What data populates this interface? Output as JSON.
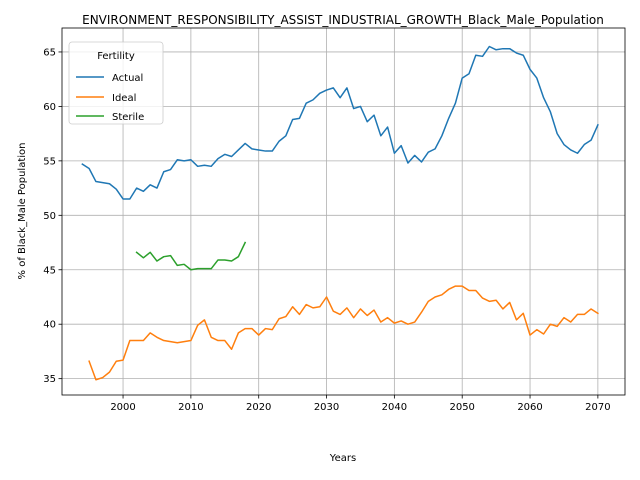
{
  "chart_data": {
    "type": "line",
    "title": "ENVIRONMENT_RESPONSIBILITY_ASSIST_INDUSTRIAL_GROWTH_Black_Male_Population",
    "xlabel": "Years",
    "ylabel": "% of Black_Male Population",
    "xlim": [
      1991,
      2074
    ],
    "ylim": [
      33.5,
      67.2
    ],
    "xticks": [
      2000,
      2010,
      2020,
      2030,
      2040,
      2050,
      2060,
      2070
    ],
    "yticks": [
      35,
      40,
      45,
      50,
      55,
      60,
      65
    ],
    "grid": true,
    "legend": {
      "title": "Fertility",
      "placement": "top-left"
    },
    "series": [
      {
        "name": "Actual",
        "color": "#1f77b4",
        "x": [
          1994,
          1995,
          1996,
          1997,
          1998,
          1999,
          2000,
          2001,
          2002,
          2003,
          2004,
          2005,
          2006,
          2007,
          2008,
          2009,
          2010,
          2011,
          2012,
          2013,
          2014,
          2015,
          2016,
          2017,
          2018,
          2019,
          2020,
          2021,
          2022,
          2023,
          2024,
          2025,
          2026,
          2027,
          2028,
          2029,
          2030,
          2031,
          2032,
          2033,
          2034,
          2035,
          2036,
          2037,
          2038,
          2039,
          2040,
          2041,
          2042,
          2043,
          2044,
          2045,
          2046,
          2047,
          2048,
          2049,
          2050,
          2051,
          2052,
          2053,
          2054,
          2055,
          2056,
          2057,
          2058,
          2059,
          2060,
          2061,
          2062,
          2063,
          2064,
          2065,
          2066,
          2067,
          2068,
          2069,
          2070
        ],
        "values": [
          54.7,
          54.3,
          53.1,
          53.0,
          52.9,
          52.4,
          51.5,
          51.5,
          52.5,
          52.2,
          52.8,
          52.5,
          54.0,
          54.2,
          55.1,
          55.0,
          55.1,
          54.5,
          54.6,
          54.5,
          55.2,
          55.6,
          55.4,
          56.0,
          56.6,
          56.1,
          56.0,
          55.9,
          55.9,
          56.8,
          57.3,
          58.8,
          58.9,
          60.3,
          60.6,
          61.2,
          61.5,
          61.7,
          60.8,
          61.7,
          59.8,
          60.0,
          58.6,
          59.2,
          57.3,
          58.1,
          55.7,
          56.4,
          54.8,
          55.5,
          54.9,
          55.8,
          56.1,
          57.3,
          58.9,
          60.3,
          62.6,
          63.0,
          64.7,
          64.6,
          65.5,
          65.2,
          65.3,
          65.3,
          64.9,
          64.7,
          63.4,
          62.6,
          60.8,
          59.5,
          57.5,
          56.5,
          56.0,
          55.7,
          56.5,
          56.9,
          58.3
        ]
      },
      {
        "name": "Ideal",
        "color": "#ff7f0e",
        "x": [
          1995,
          1996,
          1997,
          1998,
          1999,
          2000,
          2001,
          2002,
          2003,
          2004,
          2005,
          2006,
          2007,
          2008,
          2009,
          2010,
          2011,
          2012,
          2013,
          2014,
          2015,
          2016,
          2017,
          2018,
          2019,
          2020,
          2021,
          2022,
          2023,
          2024,
          2025,
          2026,
          2027,
          2028,
          2029,
          2030,
          2031,
          2032,
          2033,
          2034,
          2035,
          2036,
          2037,
          2038,
          2039,
          2040,
          2041,
          2042,
          2043,
          2044,
          2045,
          2046,
          2047,
          2048,
          2049,
          2050,
          2051,
          2052,
          2053,
          2054,
          2055,
          2056,
          2057,
          2058,
          2059,
          2060,
          2061,
          2062,
          2063,
          2064,
          2065,
          2066,
          2067,
          2068,
          2069,
          2070
        ],
        "values": [
          36.6,
          34.9,
          35.1,
          35.6,
          36.6,
          36.7,
          38.5,
          38.5,
          38.5,
          39.2,
          38.8,
          38.5,
          38.4,
          38.3,
          38.4,
          38.5,
          39.9,
          40.4,
          38.8,
          38.5,
          38.5,
          37.7,
          39.2,
          39.6,
          39.6,
          39.0,
          39.6,
          39.5,
          40.5,
          40.7,
          41.6,
          40.9,
          41.8,
          41.5,
          41.6,
          42.5,
          41.2,
          40.9,
          41.5,
          40.6,
          41.4,
          40.8,
          41.3,
          40.2,
          40.6,
          40.1,
          40.3,
          40.0,
          40.2,
          41.1,
          42.1,
          42.5,
          42.7,
          43.2,
          43.5,
          43.5,
          43.1,
          43.1,
          42.4,
          42.1,
          42.2,
          41.4,
          42.0,
          40.4,
          41.0,
          39.0,
          39.5,
          39.1,
          40.0,
          39.8,
          40.6,
          40.2,
          40.9,
          40.9,
          41.4,
          41.0
        ]
      },
      {
        "name": "Sterile",
        "color": "#2ca02c",
        "x": [
          2002,
          2003,
          2004,
          2005,
          2006,
          2007,
          2008,
          2009,
          2010,
          2011,
          2012,
          2013,
          2014,
          2015,
          2016,
          2017,
          2018
        ],
        "values": [
          46.6,
          46.1,
          46.6,
          45.8,
          46.2,
          46.3,
          45.4,
          45.5,
          45.0,
          45.1,
          45.1,
          45.1,
          45.9,
          45.9,
          45.8,
          46.2,
          47.5
        ]
      }
    ]
  }
}
